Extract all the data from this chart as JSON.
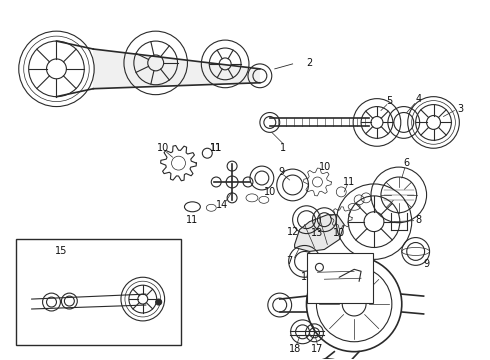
{
  "background_color": "#ffffff",
  "fig_width": 4.9,
  "fig_height": 3.6,
  "dpi": 100,
  "line_color": "#2a2a2a",
  "gray": "#888888",
  "dark": "#111111"
}
